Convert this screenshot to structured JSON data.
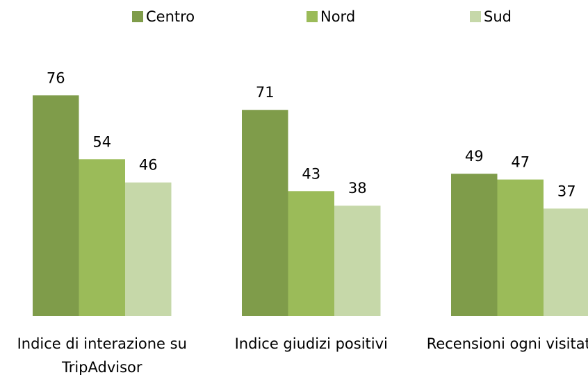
{
  "chart_data": {
    "type": "bar",
    "categories": [
      "Indice di interazione su TripAdvisor",
      "Indice giudizi positivi",
      "Recensioni ogni visitatore"
    ],
    "series": [
      {
        "name": "Centro",
        "color": "#7f9c4a",
        "values": [
          76,
          71,
          49
        ]
      },
      {
        "name": "Nord",
        "color": "#9bbb59",
        "values": [
          54,
          43,
          47
        ]
      },
      {
        "name": "Sud",
        "color": "#c6d8a9",
        "values": [
          46,
          38,
          37
        ]
      }
    ],
    "legend": "top"
  }
}
